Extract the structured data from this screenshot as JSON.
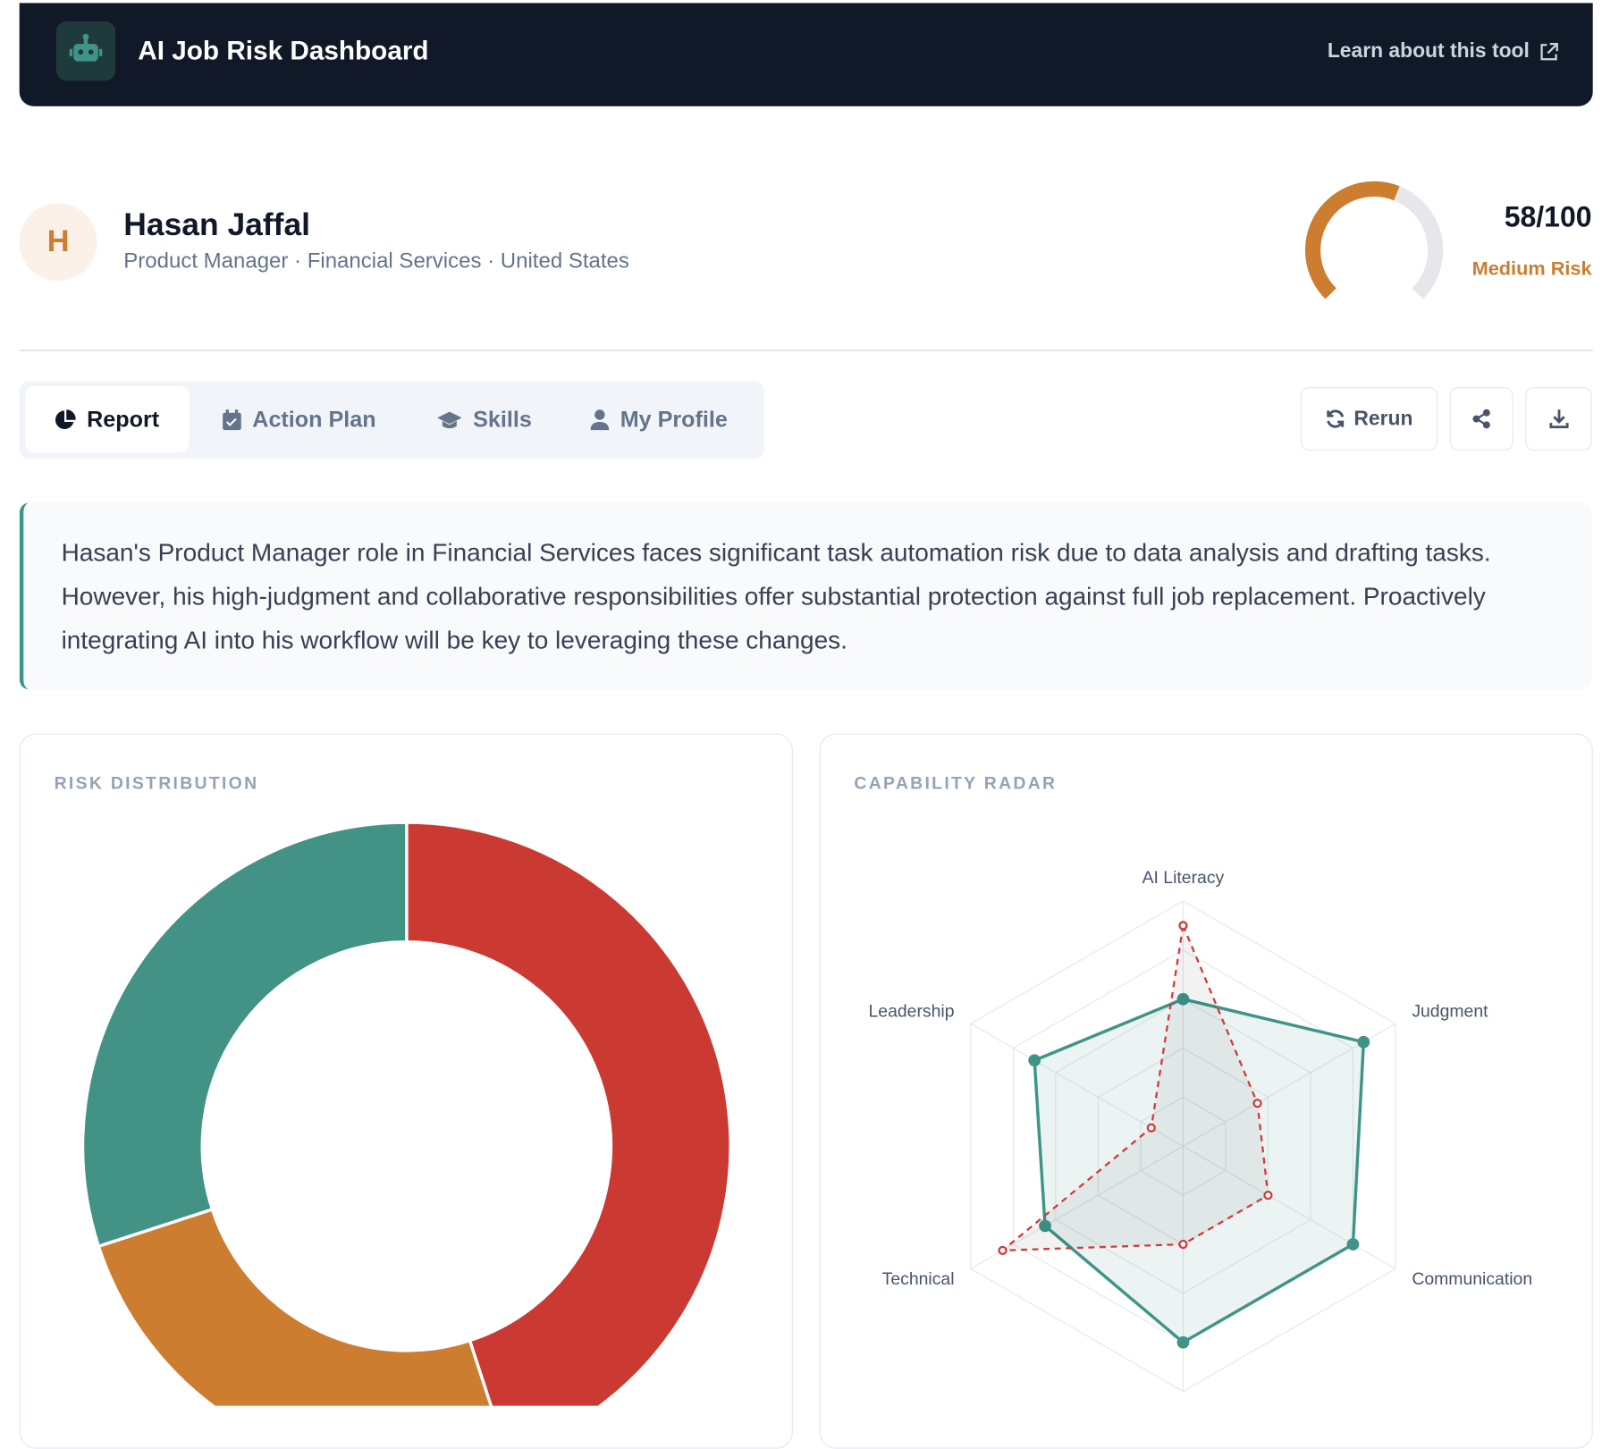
{
  "header": {
    "title": "AI Job Risk Dashboard",
    "link": "Learn about this tool"
  },
  "profile": {
    "initial": "H",
    "name": "Hasan Jaffal",
    "subtitle": "Product Manager · Financial Services · United States"
  },
  "score": {
    "value": 58,
    "max": 100,
    "label": "58/100",
    "level": "Medium Risk",
    "color": "#cc7d30"
  },
  "tabs": [
    "Report",
    "Action Plan",
    "Skills",
    "My Profile"
  ],
  "actions": {
    "rerun": "Rerun"
  },
  "summary": "Hasan's Product Manager role in Financial Services faces significant task automation risk due to data analysis and drafting tasks. However, his high-judgment and collaborative responsibilities offer substantial protection against full job replacement. Proactively integrating AI into his workflow will be key to leveraging these changes.",
  "chart_data": [
    {
      "type": "pie",
      "title": "RISK DISTRIBUTION",
      "donut": true,
      "values": [
        45,
        25,
        30
      ],
      "colors": [
        "#cb3a32",
        "#cc7d30",
        "#429386"
      ]
    },
    {
      "type": "radar",
      "title": "CAPABILITY RADAR",
      "categories": [
        "AI Literacy",
        "Judgment",
        "Communication",
        null,
        "Technical",
        "Leadership"
      ],
      "rlim": [
        0,
        100
      ],
      "rticks": [
        20,
        40,
        60,
        80,
        100
      ],
      "grid": true,
      "series": [
        {
          "color": "#3f9488",
          "style": "solid",
          "values": [
            60,
            85,
            80,
            80,
            65,
            70
          ]
        },
        {
          "color": "#d13a3a",
          "style": "dashed",
          "values": [
            90,
            35,
            40,
            40,
            85,
            15
          ]
        }
      ]
    }
  ]
}
